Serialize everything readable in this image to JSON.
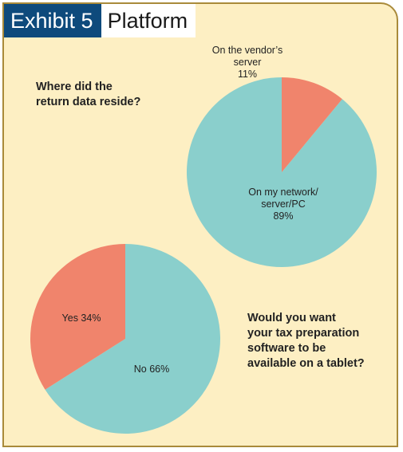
{
  "header": {
    "exhibit": "Exhibit 5",
    "title": "Platform"
  },
  "chart_data": [
    {
      "type": "pie",
      "title": "Where did the return data reside?",
      "slices": [
        {
          "label": "On my network/ server/PC",
          "label_lines": [
            "On my network/",
            "server/PC",
            "89%"
          ],
          "value": 89,
          "color": "#8acfcc"
        },
        {
          "label": "On the vendor’s server",
          "label_lines": [
            "On the vendor’s",
            "server",
            "11%"
          ],
          "value": 11,
          "color": "#f0846c"
        }
      ]
    },
    {
      "type": "pie",
      "title": "Would you want your tax preparation software to be available on a tablet?",
      "slices": [
        {
          "label": "No",
          "label_lines": [
            "No 66%"
          ],
          "value": 66,
          "color": "#8acfcc"
        },
        {
          "label": "Yes",
          "label_lines": [
            "Yes 34%"
          ],
          "value": 34,
          "color": "#f0846c"
        }
      ]
    }
  ],
  "questions": {
    "q1": "Where did the\nreturn data reside?",
    "q2": "Would you want\nyour tax preparation\nsoftware to be\navailable on a tablet?"
  }
}
